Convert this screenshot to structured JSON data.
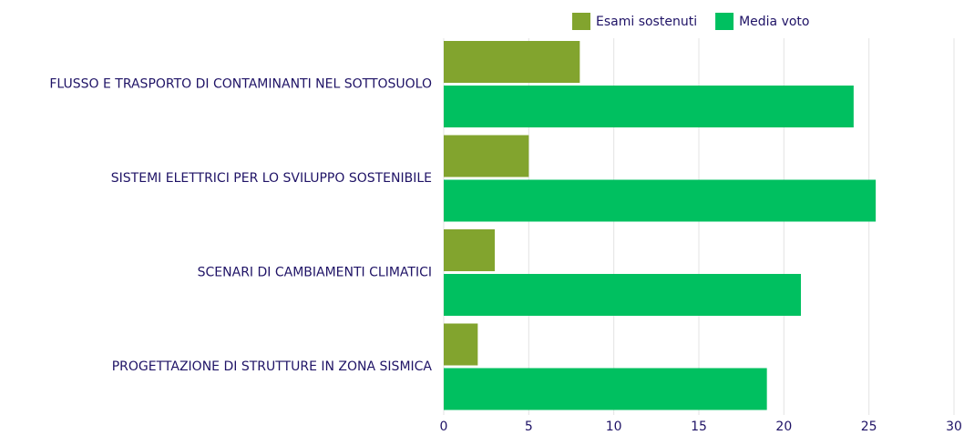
{
  "chart_data": {
    "type": "bar",
    "orientation": "horizontal",
    "categories": [
      "FLUSSO E TRASPORTO DI CONTAMINANTI NEL SOTTOSUOLO",
      "SISTEMI ELETTRICI PER LO SVILUPPO SOSTENIBILE",
      "SCENARI DI CAMBIAMENTI CLIMATICI",
      "PROGETTAZIONE DI STRUTTURE IN ZONA SISMICA"
    ],
    "series": [
      {
        "name": "Esami sostenuti",
        "color": "#82a42e",
        "values": [
          8,
          5,
          3,
          2
        ]
      },
      {
        "name": "Media voto",
        "color": "#00c060",
        "values": [
          24.1,
          25.4,
          21,
          19
        ]
      }
    ],
    "xlim": [
      0,
      30
    ],
    "xticks": [
      0,
      5,
      10,
      15,
      20,
      25,
      30
    ],
    "grid": true,
    "legend": "top"
  }
}
